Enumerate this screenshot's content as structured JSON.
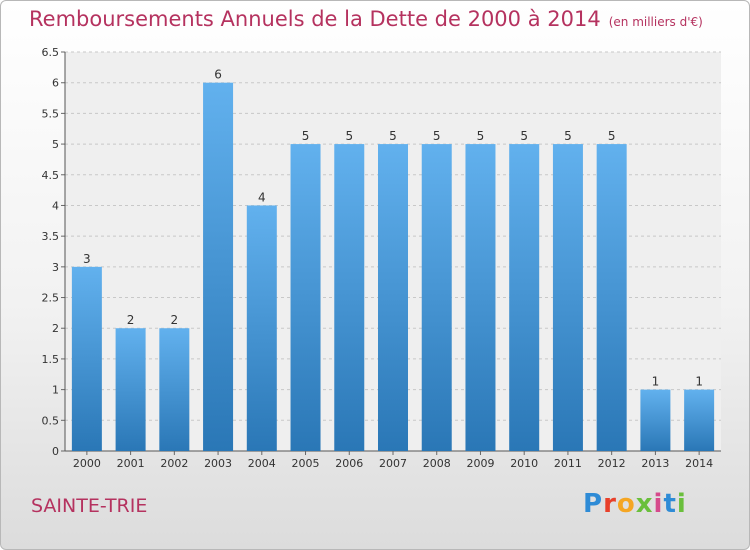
{
  "header": {
    "title": "Remboursements Annuels de la Dette de 2000 à 2014",
    "unit": "(en milliers d'€)"
  },
  "footer": {
    "commune": "SAINTE-TRIE",
    "logo": "Proxiti"
  },
  "colors": {
    "title": "#b5325f",
    "bar_top": "#62b1ee",
    "bar_bottom": "#2a77b6",
    "logo_letters": [
      "#2e8bd6",
      "#e8402a",
      "#f5a623",
      "#6abf3c",
      "#d64a8c",
      "#2e8bd6",
      "#6abf3c"
    ]
  },
  "chart_data": {
    "type": "bar",
    "categories": [
      "2000",
      "2001",
      "2002",
      "2003",
      "2004",
      "2005",
      "2006",
      "2007",
      "2008",
      "2009",
      "2010",
      "2011",
      "2012",
      "2013",
      "2014"
    ],
    "values": [
      3,
      2,
      2,
      6,
      4,
      5,
      5,
      5,
      5,
      5,
      5,
      5,
      5,
      1,
      1
    ],
    "data_labels": [
      "3",
      "2",
      "2",
      "6",
      "4",
      "5",
      "5",
      "5",
      "5",
      "5",
      "5",
      "5",
      "5",
      "1",
      "1"
    ],
    "ylim": [
      0,
      6.5
    ],
    "yticks": [
      "0",
      "0.5",
      "1",
      "1.5",
      "2",
      "2.5",
      "3",
      "3.5",
      "4",
      "4.5",
      "5",
      "5.5",
      "6",
      "6.5"
    ],
    "grid": "horizontal dashed",
    "legend": "none"
  }
}
